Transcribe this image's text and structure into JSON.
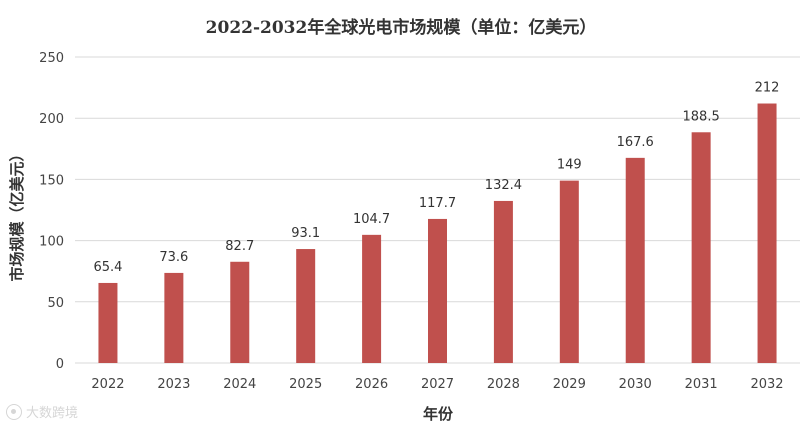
{
  "chart_data": {
    "type": "bar",
    "title": "2022-2032年全球光电市场规模（单位：亿美元）",
    "xlabel": "年份",
    "ylabel": "市场规模（亿美元）",
    "categories": [
      "2022",
      "2023",
      "2024",
      "2025",
      "2026",
      "2027",
      "2028",
      "2029",
      "2030",
      "2031",
      "2032"
    ],
    "values": [
      65.4,
      73.6,
      82.7,
      93.1,
      104.7,
      117.7,
      132.4,
      149,
      167.6,
      188.5,
      212
    ],
    "ylim": [
      0,
      250
    ],
    "yticks": [
      0,
      50,
      100,
      150,
      200,
      250
    ],
    "grid": true,
    "legend": "none",
    "bar_color": "#c0504d",
    "grid_color": "#d9d9d9"
  },
  "watermark": {
    "text": "大数跨境"
  }
}
